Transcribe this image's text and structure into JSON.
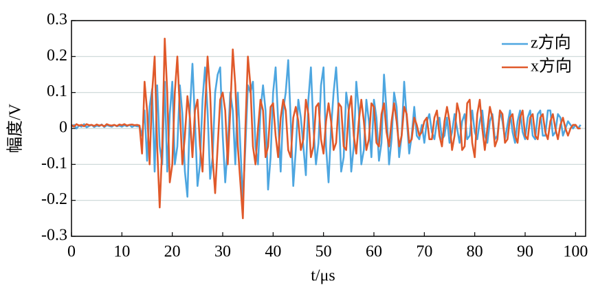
{
  "chart_data": {
    "type": "line",
    "xlabel": "t/μs",
    "ylabel": "幅度/V",
    "xlim": [
      0,
      102
    ],
    "ylim": [
      -0.3,
      0.3
    ],
    "xticks": [
      0,
      10,
      20,
      30,
      40,
      50,
      60,
      70,
      80,
      90,
      100
    ],
    "yticks": [
      0.3,
      0.2,
      0.1,
      0,
      -0.1,
      -0.2,
      -0.3
    ],
    "grid": true,
    "legend": "upper right",
    "x": [
      0,
      0.5,
      1,
      1.5,
      2,
      2.5,
      3,
      3.5,
      4,
      4.5,
      5,
      5.5,
      6,
      6.5,
      7,
      7.5,
      8,
      8.5,
      9,
      9.5,
      10,
      10.5,
      11,
      11.5,
      12,
      12.5,
      13,
      13.5,
      14,
      14.5,
      15,
      15.5,
      16,
      16.5,
      17,
      17.5,
      18,
      18.5,
      19,
      19.5,
      20,
      20.5,
      21,
      21.5,
      22,
      22.5,
      23,
      23.5,
      24,
      24.5,
      25,
      25.5,
      26,
      26.5,
      27,
      27.5,
      28,
      28.5,
      29,
      29.5,
      30,
      30.5,
      31,
      31.5,
      32,
      32.5,
      33,
      33.5,
      34,
      34.5,
      35,
      35.5,
      36,
      36.5,
      37,
      37.5,
      38,
      38.5,
      39,
      39.5,
      40,
      40.5,
      41,
      41.5,
      42,
      42.5,
      43,
      43.5,
      44,
      44.5,
      45,
      45.5,
      46,
      46.5,
      47,
      47.5,
      48,
      48.5,
      49,
      49.5,
      50,
      50.5,
      51,
      51.5,
      52,
      52.5,
      53,
      53.5,
      54,
      54.5,
      55,
      55.5,
      56,
      56.5,
      57,
      57.5,
      58,
      58.5,
      59,
      59.5,
      60,
      60.5,
      61,
      61.5,
      62,
      62.5,
      63,
      63.5,
      64,
      64.5,
      65,
      65.5,
      66,
      66.5,
      67,
      67.5,
      68,
      68.5,
      69,
      69.5,
      70,
      70.5,
      71,
      71.5,
      72,
      72.5,
      73,
      73.5,
      74,
      74.5,
      75,
      75.5,
      76,
      76.5,
      77,
      77.5,
      78,
      78.5,
      79,
      79.5,
      80,
      80.5,
      81,
      81.5,
      82,
      82.5,
      83,
      83.5,
      84,
      84.5,
      85,
      85.5,
      86,
      86.5,
      87,
      87.5,
      88,
      88.5,
      89,
      89.5,
      90,
      90.5,
      91,
      91.5,
      92,
      92.5,
      93,
      93.5,
      94,
      94.5,
      95,
      95.5,
      96,
      96.5,
      97,
      97.5,
      98,
      98.5,
      99,
      99.5,
      100,
      100.5,
      101
    ],
    "series": [
      {
        "name": "z方向",
        "color": "#4da6e0",
        "values": [
          0.005,
          0.01,
          0.0,
          0.008,
          0.005,
          0.012,
          0.003,
          0.007,
          0.01,
          0.004,
          0.008,
          0.006,
          0.011,
          0.004,
          0.009,
          0.007,
          0.005,
          0.01,
          0.006,
          0.008,
          0.005,
          0.009,
          0.006,
          0.01,
          0.004,
          0.008,
          0.006,
          0.005,
          -0.02,
          0.05,
          -0.09,
          0.06,
          0.11,
          -0.12,
          0.12,
          -0.05,
          -0.1,
          0.13,
          -0.12,
          0.04,
          0.13,
          -0.1,
          -0.05,
          0.12,
          0.04,
          -0.12,
          -0.19,
          0.05,
          0.18,
          0.02,
          -0.16,
          -0.1,
          0.08,
          0.17,
          0.05,
          -0.14,
          -0.08,
          0.1,
          0.15,
          0.17,
          -0.02,
          -0.15,
          -0.05,
          0.1,
          0.05,
          -0.1,
          0.1,
          -0.05,
          -0.2,
          -0.05,
          0.12,
          0.1,
          0.13,
          -0.05,
          -0.1,
          0.05,
          0.12,
          0.05,
          -0.17,
          -0.08,
          0.1,
          0.17,
          0.02,
          -0.12,
          0.05,
          0.1,
          0.19,
          0.02,
          -0.16,
          -0.06,
          0.08,
          0.03,
          -0.05,
          -0.13,
          0.08,
          0.17,
          0.0,
          -0.1,
          -0.04,
          0.12,
          0.17,
          -0.05,
          -0.15,
          0.0,
          0.1,
          0.17,
          0.05,
          -0.12,
          -0.08,
          0.1,
          0.05,
          -0.12,
          -0.05,
          0.13,
          0.05,
          -0.1,
          -0.06,
          0.08,
          0.02,
          -0.08,
          0.08,
          0.03,
          -0.09,
          -0.04,
          0.15,
          0.05,
          -0.1,
          -0.03,
          0.1,
          0.06,
          -0.08,
          -0.02,
          0.13,
          0.03,
          -0.07,
          -0.02,
          0.06,
          -0.02,
          -0.03,
          0.01,
          -0.04,
          0.02,
          0.04,
          -0.01,
          -0.03,
          0.02,
          0.03,
          -0.03,
          -0.02,
          0.03,
          -0.04,
          -0.01,
          0.04,
          0.0,
          -0.04,
          0.02,
          0.04,
          -0.03,
          -0.02,
          0.05,
          -0.01,
          -0.03,
          0.02,
          0.05,
          -0.02,
          -0.04,
          0.02,
          0.04,
          -0.03,
          -0.02,
          0.05,
          0.02,
          -0.03,
          0.01,
          0.05,
          -0.01,
          -0.04,
          0.02,
          0.05,
          -0.01,
          -0.03,
          0.03,
          0.05,
          -0.02,
          -0.03,
          0.04,
          0.05,
          -0.02,
          -0.02,
          0.05,
          0.05,
          -0.02,
          -0.01,
          0.04,
          0.03,
          -0.02,
          0.0,
          0.02,
          0.01,
          0.0,
          0.01,
          0.0,
          0.01
        ]
      },
      {
        "name": "x方向",
        "color": "#e0592a",
        "values": [
          0.01,
          0.005,
          0.012,
          0.008,
          0.01,
          0.006,
          0.012,
          0.009,
          0.01,
          0.007,
          0.011,
          0.008,
          0.01,
          0.006,
          0.012,
          0.009,
          0.008,
          0.01,
          0.007,
          0.011,
          0.009,
          0.012,
          0.008,
          0.01,
          0.011,
          0.009,
          0.01,
          0.008,
          -0.07,
          0.13,
          0.05,
          -0.1,
          0.1,
          0.2,
          -0.05,
          -0.22,
          -0.05,
          0.25,
          0.1,
          -0.15,
          -0.1,
          0.1,
          0.2,
          0.05,
          -0.1,
          -0.02,
          0.09,
          0.03,
          -0.08,
          0.05,
          0.08,
          -0.05,
          -0.12,
          0.05,
          0.2,
          0.1,
          -0.08,
          -0.18,
          -0.05,
          0.08,
          0.1,
          0.05,
          -0.1,
          0.05,
          0.22,
          0.12,
          -0.05,
          -0.15,
          -0.25,
          0.0,
          0.2,
          0.12,
          -0.05,
          -0.1,
          0.0,
          0.08,
          0.05,
          -0.08,
          -0.05,
          0.06,
          0.07,
          -0.02,
          -0.08,
          0.03,
          0.08,
          0.05,
          -0.06,
          -0.08,
          0.03,
          0.06,
          0.02,
          -0.06,
          -0.03,
          0.08,
          0.04,
          -0.08,
          -0.05,
          0.06,
          0.07,
          -0.03,
          -0.07,
          0.02,
          0.07,
          0.02,
          -0.06,
          -0.04,
          0.07,
          0.06,
          -0.05,
          -0.06,
          0.05,
          0.09,
          -0.02,
          -0.07,
          0.02,
          0.08,
          0.02,
          -0.06,
          -0.03,
          0.07,
          0.06,
          -0.04,
          -0.05,
          0.04,
          0.07,
          -0.01,
          -0.05,
          0.02,
          0.07,
          0.02,
          -0.05,
          -0.02,
          0.06,
          0.04,
          -0.04,
          -0.03,
          0.03,
          0.01,
          -0.02,
          -0.01,
          0.02,
          0.03,
          -0.03,
          -0.03,
          0.03,
          0.05,
          -0.02,
          -0.05,
          0.02,
          0.06,
          0.02,
          -0.06,
          -0.02,
          0.07,
          0.04,
          -0.06,
          -0.05,
          0.07,
          0.08,
          -0.04,
          -0.08,
          0.04,
          0.08,
          0.0,
          -0.06,
          0.0,
          0.06,
          0.03,
          -0.05,
          -0.03,
          0.05,
          0.04,
          -0.04,
          -0.03,
          0.03,
          0.04,
          -0.02,
          -0.04,
          0.03,
          0.05,
          -0.02,
          -0.03,
          0.03,
          0.04,
          -0.02,
          -0.03,
          0.03,
          0.04,
          -0.01,
          -0.03,
          0.02,
          0.04,
          0.0,
          -0.03,
          0.01,
          0.03,
          0.0,
          -0.02,
          0.0,
          0.01,
          0.01,
          0.0,
          0.0
        ]
      }
    ]
  }
}
